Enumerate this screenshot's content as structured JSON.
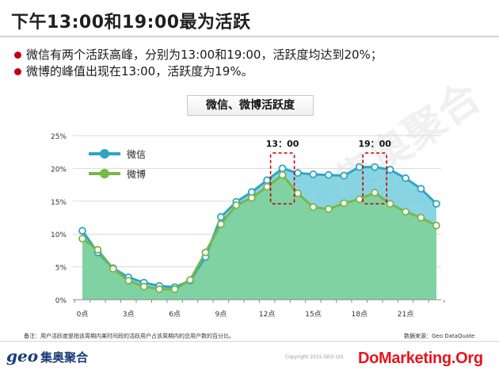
{
  "page": {
    "title": "下午13:00和19:00最为活跃",
    "bullets": [
      "微信有两个活跃高峰，分别为13:00和19:00，活跃度均达到20%；",
      "微博的峰值出现在13:00，活跃度为19%。"
    ],
    "footnote": "备注：用户活跃度是指该周期内某时间段的活跃用户占该周期内的总用户数的百分比。",
    "source": "数据来源：Geo DataQuate",
    "copyright": "Copyright 2015 GEO Ltd.",
    "logo_geo": "geo",
    "logo_cn": "集奥聚合",
    "watermark_site": "DoMarketing.Org",
    "watermark_brand": "geo集奥聚合"
  },
  "colors": {
    "weixin_line": "#2ea6c3",
    "weixin_fill": "#7ccfe0",
    "weibo_line": "#7ab648",
    "weibo_fill": "#7fd19a",
    "highlight_box": "#c00000"
  },
  "chart_data": {
    "type": "area",
    "title": "微信、微博活跃度",
    "x": [
      0,
      1,
      2,
      3,
      4,
      5,
      6,
      7,
      8,
      9,
      10,
      11,
      12,
      13,
      14,
      15,
      16,
      17,
      18,
      19,
      20,
      21,
      22,
      23
    ],
    "xticks": [
      "0点",
      "3点",
      "6点",
      "9点",
      "12点",
      "15点",
      "18点",
      "21点"
    ],
    "xtick_positions": [
      0,
      3,
      6,
      9,
      12,
      15,
      18,
      21
    ],
    "ylim": [
      0,
      25
    ],
    "yticks": [
      "0%",
      "5%",
      "10%",
      "15%",
      "20%",
      "25%"
    ],
    "ytick_values": [
      0,
      5,
      10,
      15,
      20,
      25
    ],
    "grid": true,
    "legend_position": "top-left",
    "series": [
      {
        "name": "微信",
        "values": [
          10.5,
          7.2,
          4.8,
          3.4,
          2.6,
          2.1,
          1.9,
          2.9,
          6.5,
          12.6,
          14.9,
          16.4,
          18.2,
          20.0,
          19.3,
          19.1,
          19.0,
          18.9,
          20.2,
          20.2,
          19.8,
          18.5,
          16.9,
          14.6
        ]
      },
      {
        "name": "微博",
        "values": [
          9.3,
          7.6,
          4.7,
          2.9,
          2.0,
          1.6,
          1.6,
          3.0,
          7.2,
          11.5,
          14.4,
          15.5,
          17.2,
          19.0,
          16.2,
          14.1,
          13.8,
          14.7,
          15.3,
          16.3,
          14.6,
          13.4,
          12.5,
          11.3
        ]
      }
    ],
    "annotations": [
      {
        "label": "13：00",
        "x": 13
      },
      {
        "label": "19：00",
        "x": 19
      }
    ]
  }
}
